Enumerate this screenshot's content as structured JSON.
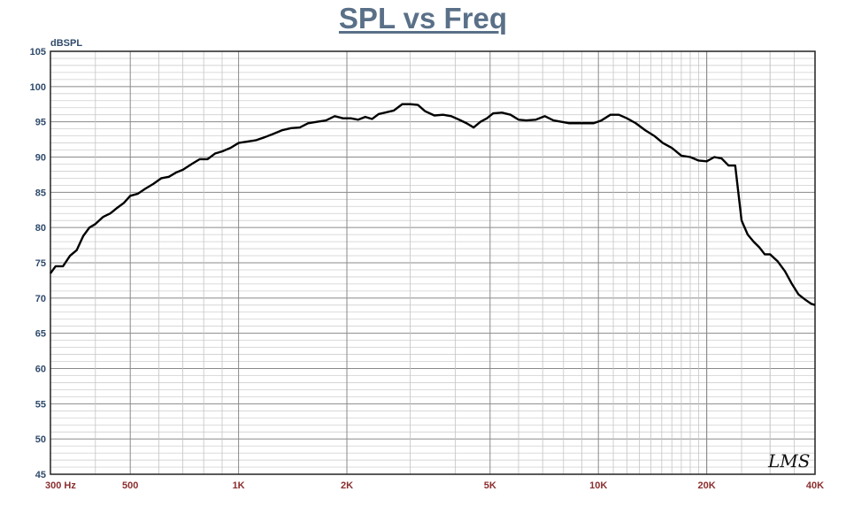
{
  "chart_data": {
    "type": "line",
    "title": "SPL vs Freq",
    "ylabel": "dBSPL",
    "x_scale": "log",
    "xlim": [
      300,
      40000
    ],
    "ylim": [
      45,
      105
    ],
    "grid": true,
    "y_ticks": [
      45,
      50,
      55,
      60,
      65,
      70,
      75,
      80,
      85,
      90,
      95,
      100,
      105
    ],
    "x_ticks": [
      {
        "value": 300,
        "label": "300  Hz"
      },
      {
        "value": 500,
        "label": "500"
      },
      {
        "value": 1000,
        "label": "1K"
      },
      {
        "value": 2000,
        "label": "2K"
      },
      {
        "value": 5000,
        "label": "5K"
      },
      {
        "value": 10000,
        "label": "10K"
      },
      {
        "value": 20000,
        "label": "20K"
      },
      {
        "value": 40000,
        "label": "40K"
      }
    ],
    "watermark": "LMS",
    "line_color": "#000000",
    "series": [
      {
        "x": [
          300,
          310,
          325,
          340,
          355,
          370,
          385,
          400,
          420,
          440,
          460,
          480,
          500,
          525,
          550,
          580,
          610,
          640,
          670,
          700,
          740,
          780,
          820,
          860,
          900,
          950,
          1000,
          1060,
          1120,
          1180,
          1250,
          1320,
          1400,
          1480,
          1560,
          1650,
          1750,
          1850,
          1950,
          2050,
          2150,
          2250,
          2350,
          2450,
          2550,
          2700,
          2850,
          3000,
          3150,
          3300,
          3500,
          3700,
          3900,
          4100,
          4300,
          4500,
          4700,
          4900,
          5100,
          5400,
          5700,
          6000,
          6300,
          6700,
          7100,
          7500,
          7900,
          8300,
          8700,
          9200,
          9700,
          10200,
          10800,
          11400,
          12000,
          12700,
          13500,
          14300,
          15100,
          16000,
          17000,
          18000,
          19000,
          20000,
          21000,
          22000,
          23000,
          24000,
          25000,
          26000,
          27000,
          28000,
          29000,
          30000,
          31500,
          33000,
          34500,
          36000,
          37500,
          39000,
          40000
        ],
        "y": [
          73.5,
          74.5,
          74.5,
          76.0,
          76.8,
          78.8,
          80.0,
          80.5,
          81.5,
          82.0,
          82.8,
          83.5,
          84.5,
          84.8,
          85.5,
          86.2,
          87.0,
          87.2,
          87.8,
          88.2,
          89.0,
          89.7,
          89.7,
          90.5,
          90.8,
          91.3,
          92.0,
          92.2,
          92.4,
          92.8,
          93.3,
          93.8,
          94.1,
          94.2,
          94.8,
          95.0,
          95.2,
          95.8,
          95.5,
          95.5,
          95.3,
          95.7,
          95.4,
          96.1,
          96.3,
          96.6,
          97.5,
          97.5,
          97.4,
          96.5,
          95.9,
          96.0,
          95.8,
          95.3,
          94.8,
          94.2,
          95.0,
          95.5,
          96.2,
          96.3,
          96.0,
          95.3,
          95.2,
          95.3,
          95.8,
          95.2,
          95.0,
          94.8,
          94.8,
          94.8,
          94.8,
          95.2,
          96.0,
          96.0,
          95.5,
          94.8,
          93.8,
          93.0,
          92.0,
          91.3,
          90.2,
          90.0,
          89.5,
          89.4,
          90.0,
          89.8,
          88.8,
          88.8,
          81.0,
          79.0,
          78.0,
          77.2,
          76.2,
          76.2,
          75.2,
          73.8,
          72.0,
          70.5,
          69.8,
          69.2,
          69.0
        ]
      }
    ]
  }
}
